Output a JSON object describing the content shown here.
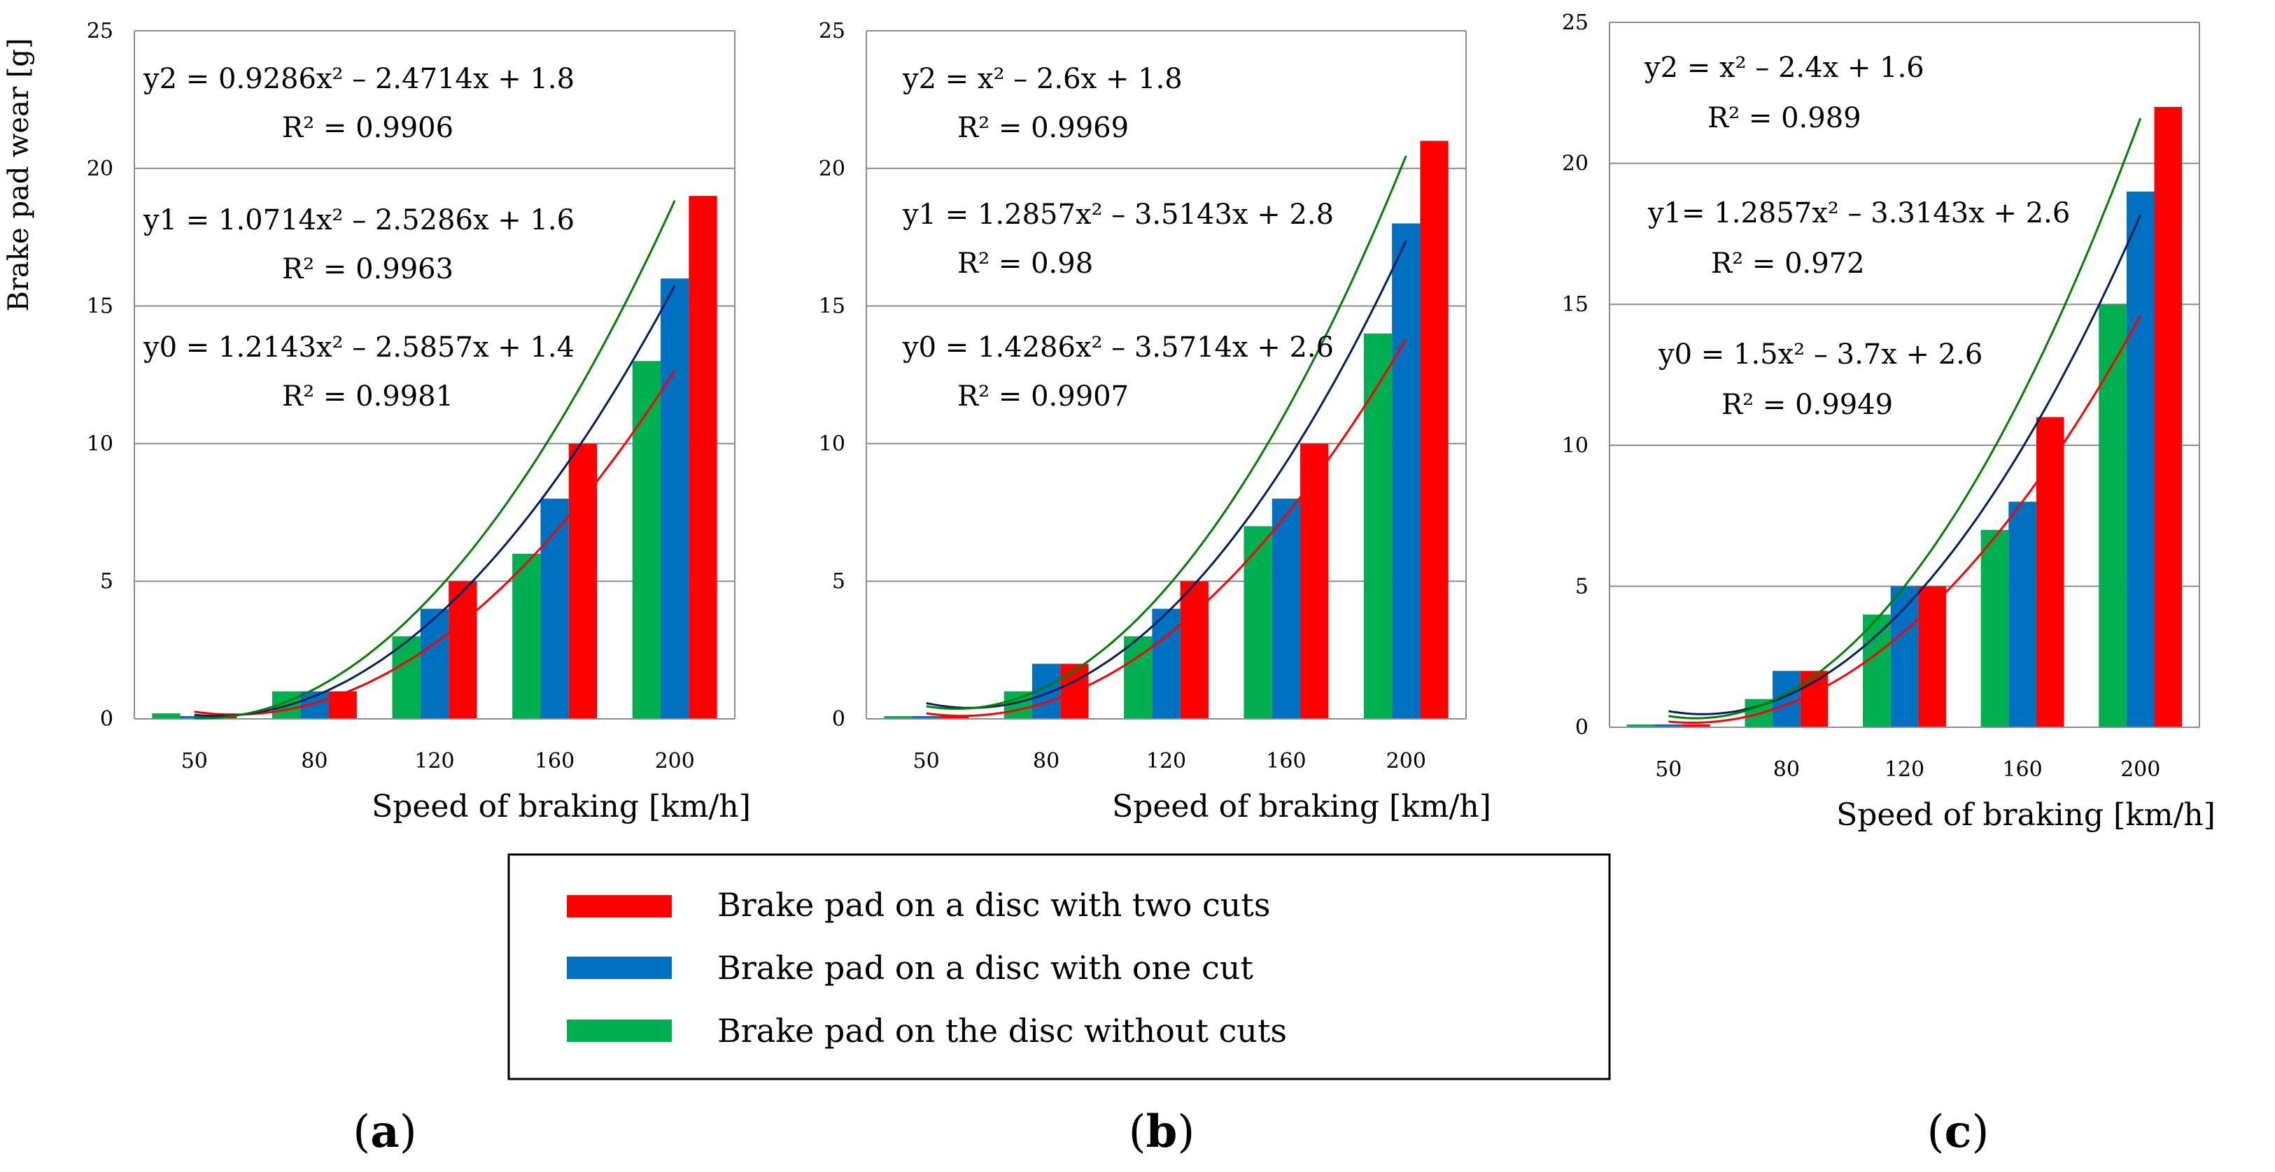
{
  "ylabel": "Brake pad wear [g]",
  "legend": [
    {
      "label": "Brake pad on a disc with two cuts",
      "color": "#ff0000"
    },
    {
      "label": "Brake pad on a disc with one cut",
      "color": "#0070c0"
    },
    {
      "label": "Brake pad on the disc without cuts",
      "color": "#00b050"
    }
  ],
  "trend_colors": {
    "y2": "#ff0000",
    "y1": "#002060",
    "y0": "#008000"
  },
  "chart_data": [
    {
      "type": "bar",
      "panel": "a",
      "categories": [
        "50",
        "80",
        "120",
        "160",
        "200"
      ],
      "xlabel": "Speed of braking [km/h]",
      "ylabel": "Brake pad wear [g]",
      "ylim": [
        0,
        25
      ],
      "yticks": [
        "0",
        "5",
        "10",
        "15",
        "20",
        "25"
      ],
      "series": [
        {
          "name": "Brake pad on the disc without cuts",
          "values": [
            0.2,
            1,
            3,
            6,
            13
          ]
        },
        {
          "name": "Brake pad on a disc with one cut",
          "values": [
            0.1,
            1,
            4,
            8,
            16
          ]
        },
        {
          "name": "Brake pad on a disc with two cuts",
          "values": [
            0.1,
            1,
            5,
            10,
            19
          ]
        }
      ],
      "trendlines": [
        {
          "name": "y2",
          "coef": [
            0.9286,
            -2.4714,
            1.8
          ],
          "equation": "y2 = 0.9286x² – 2.4714x + 1.8",
          "r2": "R² = 0.9906"
        },
        {
          "name": "y1",
          "coef": [
            1.0714,
            -2.5286,
            1.6
          ],
          "equation": "y1 = 1.0714x² – 2.5286x + 1.6",
          "r2": "R² = 0.9963"
        },
        {
          "name": "y0",
          "coef": [
            1.2143,
            -2.5857,
            1.4
          ],
          "equation": "y0 = 1.2143x² – 2.5857x + 1.4",
          "r2": "R² = 0.9981"
        }
      ],
      "label_open": "(",
      "label_letter": "a",
      "label_close": ")"
    },
    {
      "type": "bar",
      "panel": "b",
      "categories": [
        "50",
        "80",
        "120",
        "160",
        "200"
      ],
      "xlabel": "Speed of braking [km/h]",
      "ylim": [
        0,
        25
      ],
      "yticks": [
        "0",
        "5",
        "10",
        "15",
        "20",
        "25"
      ],
      "series": [
        {
          "name": "Brake pad on the disc without cuts",
          "values": [
            0.1,
            1,
            3,
            7,
            14
          ]
        },
        {
          "name": "Brake pad on a disc with one cut",
          "values": [
            0.1,
            2,
            4,
            8,
            18
          ]
        },
        {
          "name": "Brake pad on a disc with two cuts",
          "values": [
            0.1,
            2,
            5,
            10,
            21
          ]
        }
      ],
      "trendlines": [
        {
          "name": "y2",
          "coef": [
            1,
            -2.6,
            1.8
          ],
          "equation": "y2 = x² – 2.6x + 1.8",
          "r2": "R² = 0.9969"
        },
        {
          "name": "y1",
          "coef": [
            1.2857,
            -3.5143,
            2.8
          ],
          "equation": "y1 = 1.2857x² – 3.5143x + 2.8",
          "r2": "R² = 0.98"
        },
        {
          "name": "y0",
          "coef": [
            1.4286,
            -3.5714,
            2.6
          ],
          "equation": "y0 = 1.4286x² – 3.5714x + 2.6",
          "r2": "R² = 0.9907"
        }
      ],
      "label_open": "(",
      "label_letter": "b",
      "label_close": ")"
    },
    {
      "type": "bar",
      "panel": "c",
      "categories": [
        "50",
        "80",
        "120",
        "160",
        "200"
      ],
      "xlabel": "Speed of braking [km/h]",
      "ylim": [
        0,
        25
      ],
      "yticks": [
        "0",
        "5",
        "10",
        "15",
        "20",
        "25"
      ],
      "series": [
        {
          "name": "Brake pad on the disc without cuts",
          "values": [
            0.1,
            1,
            4,
            7,
            15
          ]
        },
        {
          "name": "Brake pad on a disc with one cut",
          "values": [
            0.1,
            2,
            5,
            8,
            19
          ]
        },
        {
          "name": "Brake pad on a disc with two cuts",
          "values": [
            0.1,
            2,
            5,
            11,
            22
          ]
        }
      ],
      "trendlines": [
        {
          "name": "y2",
          "coef": [
            1,
            -2.4,
            1.6
          ],
          "equation": "y2 = x² – 2.4x + 1.6",
          "r2": "R² = 0.989"
        },
        {
          "name": "y1",
          "coef": [
            1.2857,
            -3.3143,
            2.6
          ],
          "equation": "y1= 1.2857x² – 3.3143x + 2.6",
          "r2": "R² = 0.972"
        },
        {
          "name": "y0",
          "coef": [
            1.5,
            -3.7,
            2.6
          ],
          "equation": "y0 = 1.5x² – 3.7x + 2.6",
          "r2": "R² = 0.9949"
        }
      ],
      "label_open": "(",
      "label_letter": "c",
      "label_close": ")"
    }
  ]
}
